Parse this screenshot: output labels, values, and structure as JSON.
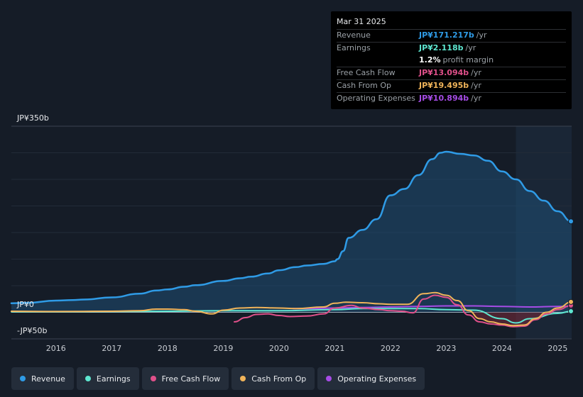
{
  "tooltip": {
    "date": "Mar 31 2025",
    "rows": [
      {
        "label": "Revenue",
        "value": "JP¥171.217b",
        "unit": "/yr",
        "color": "#2f9be6"
      },
      {
        "label": "Earnings",
        "value": "JP¥2.118b",
        "unit": "/yr",
        "color": "#5ee6d0"
      },
      {
        "label": "",
        "value": "1.2%",
        "unit": "profit margin",
        "color": "#ffffff"
      },
      {
        "label": "Free Cash Flow",
        "value": "JP¥13.094b",
        "unit": "/yr",
        "color": "#e0508a"
      },
      {
        "label": "Cash From Op",
        "value": "JP¥19.495b",
        "unit": "/yr",
        "color": "#f0b45a"
      },
      {
        "label": "Operating Expenses",
        "value": "JP¥10.894b",
        "unit": "/yr",
        "color": "#a64ce6"
      }
    ]
  },
  "legend": [
    {
      "label": "Revenue",
      "color": "#2f9be6"
    },
    {
      "label": "Earnings",
      "color": "#5ee6d0"
    },
    {
      "label": "Free Cash Flow",
      "color": "#e0508a"
    },
    {
      "label": "Cash From Op",
      "color": "#f0b45a"
    },
    {
      "label": "Operating Expenses",
      "color": "#a64ce6"
    }
  ],
  "chart_data": {
    "type": "area",
    "title": "",
    "xlabel": "",
    "ylabel": "",
    "y_axis_labels": {
      "top": "JP¥350b",
      "zero": "JP¥0",
      "bottom": "-JP¥50b"
    },
    "ylim": [
      -50,
      350
    ],
    "xlim": [
      2015.2,
      2025.25
    ],
    "x_ticks": [
      2016,
      2017,
      2018,
      2019,
      2020,
      2021,
      2022,
      2023,
      2024,
      2025
    ],
    "x_tick_labels": [
      "2016",
      "2017",
      "2018",
      "2019",
      "2020",
      "2021",
      "2022",
      "2023",
      "2024",
      "2025"
    ],
    "highlight_start": 2024.25,
    "series": [
      {
        "name": "Revenue",
        "color": "#2f9be6",
        "fill": true,
        "x": [
          2015.2,
          2015.5,
          2016,
          2016.3,
          2016.5,
          2017,
          2017.5,
          2017.8,
          2018,
          2018.3,
          2018.5,
          2019,
          2019.3,
          2019.5,
          2019.8,
          2020,
          2020.3,
          2020.5,
          2020.8,
          2021,
          2021.05,
          2021.15,
          2021.25,
          2021.5,
          2021.75,
          2022,
          2022.25,
          2022.5,
          2022.75,
          2022.9,
          2023,
          2023.25,
          2023.5,
          2023.75,
          2024,
          2024.25,
          2024.5,
          2024.75,
          2025,
          2025.25
        ],
        "y": [
          17,
          18,
          22,
          23,
          24,
          28,
          35,
          41,
          43,
          48,
          51,
          59,
          64,
          67,
          73,
          79,
          85,
          88,
          91,
          96,
          100,
          115,
          140,
          155,
          175,
          220,
          232,
          258,
          288,
          300,
          302,
          298,
          295,
          285,
          265,
          250,
          228,
          210,
          190,
          171
        ]
      },
      {
        "name": "Earnings",
        "color": "#5ee6d0",
        "fill": false,
        "x": [
          2015.2,
          2016,
          2017,
          2018,
          2019,
          2020,
          2021,
          2021.5,
          2022,
          2022.5,
          2023,
          2023.5,
          2024,
          2024.25,
          2024.5,
          2025,
          2025.25
        ],
        "y": [
          1,
          1,
          1.5,
          2,
          3,
          3,
          5,
          7,
          7,
          7,
          5,
          4,
          -12,
          -20,
          -12,
          -2,
          2
        ]
      },
      {
        "name": "Free Cash Flow",
        "color": "#e0508a",
        "fill": false,
        "x": [
          2019.2,
          2019.4,
          2019.6,
          2019.8,
          2020,
          2020.2,
          2020.5,
          2020.8,
          2021,
          2021.3,
          2021.5,
          2021.8,
          2022,
          2022.2,
          2022.4,
          2022.6,
          2022.8,
          2023,
          2023.2,
          2023.4,
          2023.6,
          2023.8,
          2024,
          2024.2,
          2024.4,
          2024.6,
          2024.8,
          2025,
          2025.25
        ],
        "y": [
          -18,
          -10,
          -4,
          -3,
          -6,
          -8,
          -7,
          -3,
          8,
          13,
          8,
          5,
          3,
          2,
          -1,
          25,
          32,
          28,
          14,
          -5,
          -18,
          -22,
          -24,
          -27,
          -26,
          -14,
          -3,
          5,
          13
        ]
      },
      {
        "name": "Cash From Op",
        "color": "#f0b45a",
        "fill": false,
        "x": [
          2015.2,
          2016,
          2017,
          2017.5,
          2017.8,
          2018,
          2018.3,
          2018.5,
          2018.8,
          2019,
          2019.3,
          2019.6,
          2020,
          2020.3,
          2020.8,
          2021,
          2021.2,
          2021.5,
          2021.8,
          2022,
          2022.3,
          2022.6,
          2022.8,
          2023,
          2023.2,
          2023.4,
          2023.6,
          2023.8,
          2024,
          2024.2,
          2024.4,
          2024.6,
          2024.8,
          2025,
          2025.25
        ],
        "y": [
          2,
          1.5,
          2,
          3,
          6,
          6,
          5,
          2,
          -3,
          4,
          8,
          9,
          8,
          7,
          10,
          17,
          19,
          18,
          16,
          15,
          15,
          35,
          37,
          32,
          22,
          3,
          -12,
          -18,
          -22,
          -25,
          -24,
          -12,
          0,
          8,
          19.5
        ]
      },
      {
        "name": "Operating Expenses",
        "color": "#a64ce6",
        "fill": false,
        "x": [
          2020.25,
          2020.5,
          2021,
          2021.5,
          2022,
          2022.5,
          2023,
          2023.5,
          2024,
          2024.5,
          2025,
          2025.25
        ],
        "y": [
          7,
          7,
          8,
          9,
          10,
          11,
          12,
          12,
          11,
          10,
          11,
          10.9
        ]
      }
    ]
  }
}
